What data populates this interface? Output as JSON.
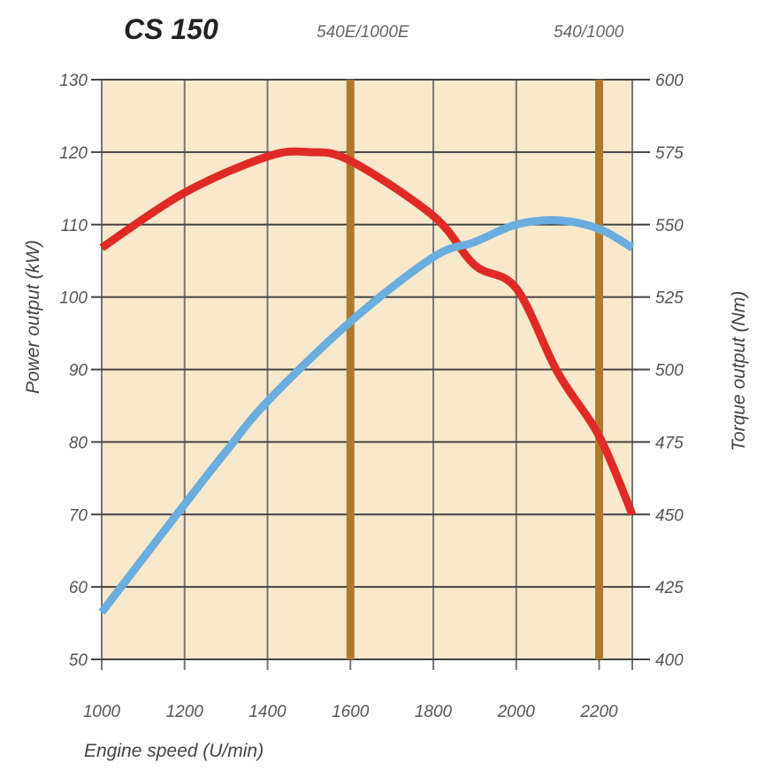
{
  "chart_data": {
    "type": "line",
    "title": "CS 150",
    "annotations": [
      "540E/1000E",
      "540/1000"
    ],
    "annotation_x": [
      1600,
      2200
    ],
    "xlabel": "Engine speed (U/min)",
    "ylabel": "Power output (kW)",
    "y2label": "Torque output (Nm)",
    "xlim": [
      1000,
      2280
    ],
    "ylim": [
      50,
      130
    ],
    "y2lim": [
      400,
      600
    ],
    "x_ticks": [
      "1000",
      "1200",
      "1400",
      "1600",
      "1800",
      "2000",
      "2200"
    ],
    "y_ticks": [
      "50",
      "60",
      "70",
      "80",
      "90",
      "100",
      "110",
      "120",
      "130"
    ],
    "y2_ticks": [
      "400",
      "425",
      "450",
      "475",
      "500",
      "525",
      "550",
      "575",
      "600"
    ],
    "grid": true,
    "background": "#f8e8cc",
    "series": [
      {
        "axis": "right",
        "color": "#e02a25",
        "x": [
          1000,
          1200,
          1400,
          1500,
          1600,
          1800,
          1900,
          2000,
          2100,
          2200,
          2280
        ],
        "y": [
          542,
          561,
          573.5,
          575,
          572,
          553,
          536,
          528,
          499,
          477,
          450
        ]
      },
      {
        "axis": "left",
        "color": "#6aaee0",
        "x": [
          1000,
          1200,
          1300,
          1400,
          1600,
          1800,
          1900,
          2000,
          2100,
          2200,
          2280
        ],
        "y": [
          56.5,
          71.4,
          78.7,
          85.6,
          96.6,
          105.5,
          107.6,
          110,
          110.6,
          109.4,
          106.8
        ]
      }
    ],
    "marker_line_color": "#b07a2e"
  }
}
